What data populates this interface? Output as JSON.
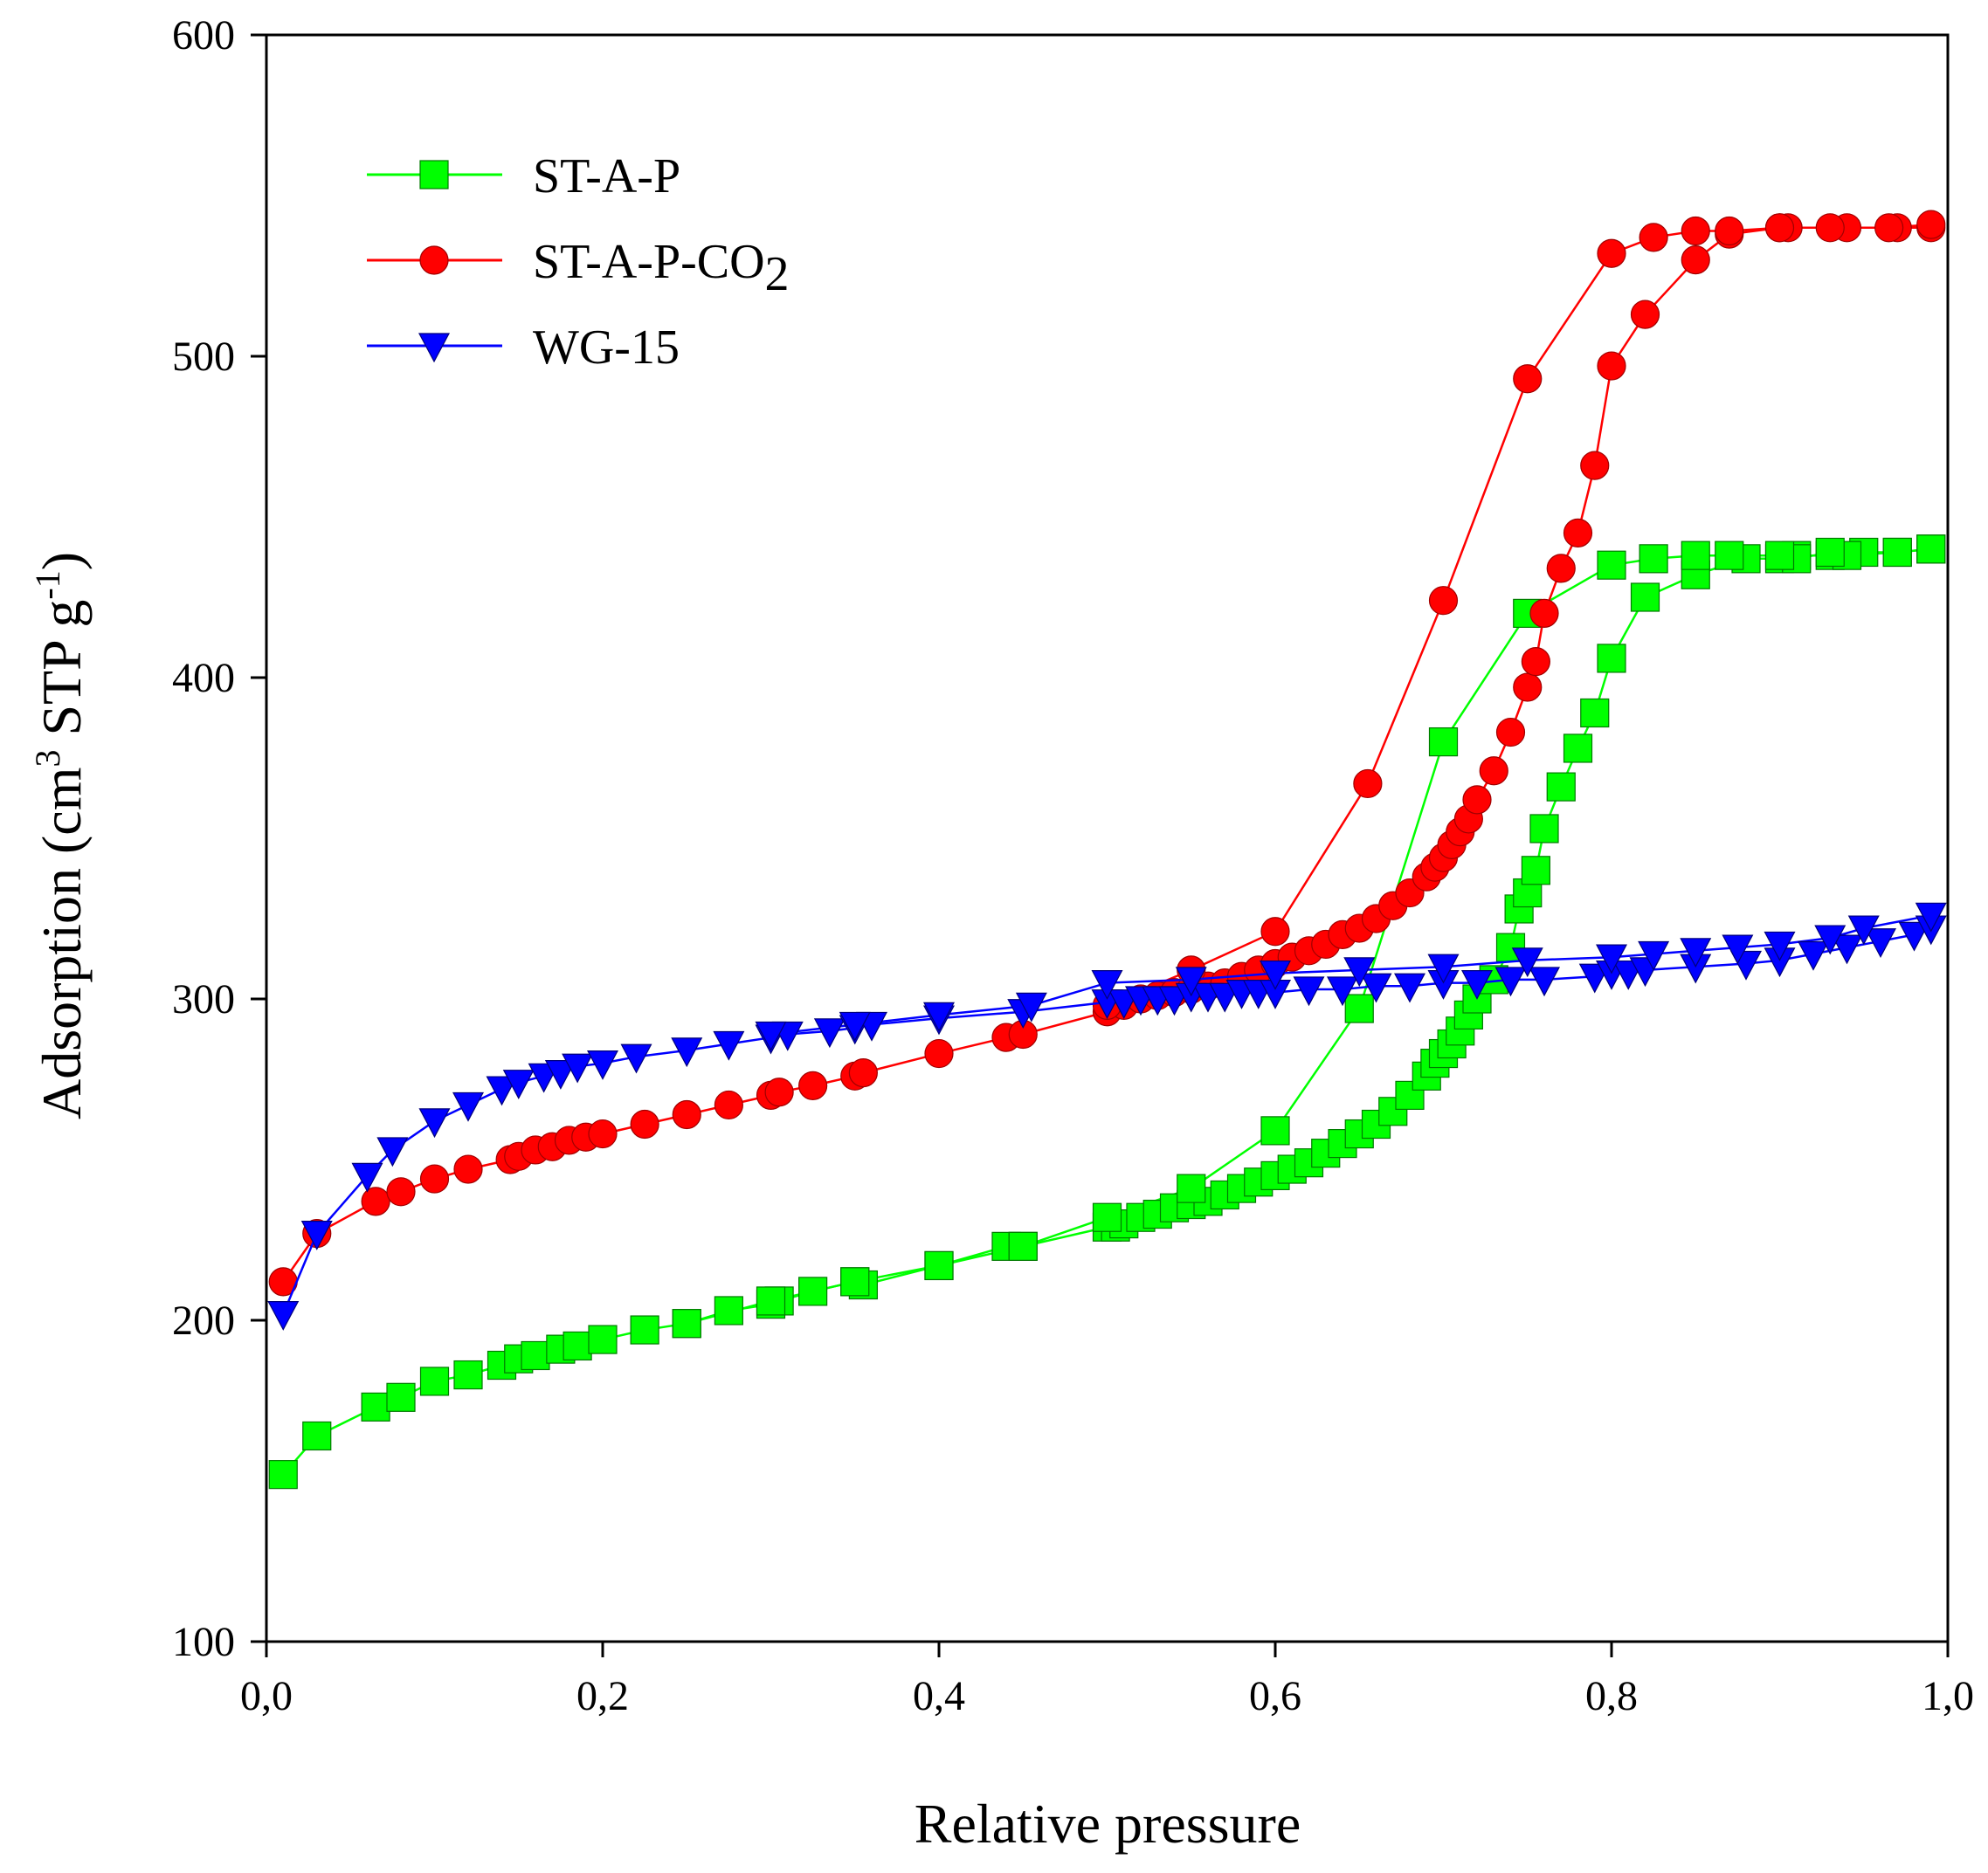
{
  "chart_data": {
    "type": "scatter",
    "title": "",
    "xlabel": "Relative pressure",
    "ylabel": "Adsorption (cm3 STP g-1)",
    "ylabel_parts": {
      "main": "Adsorption (cm",
      "sup1": "3",
      "mid": " STP g",
      "sup2": "-1",
      "end": ")"
    },
    "xlim": [
      0,
      1
    ],
    "ylim": [
      100,
      600
    ],
    "x_ticks": [
      0,
      0.2,
      0.4,
      0.6,
      0.8,
      1.0
    ],
    "x_tick_labels": [
      "0,0",
      "0,2",
      "0,4",
      "0,6",
      "0,8",
      "1,0"
    ],
    "y_ticks": [
      100,
      200,
      300,
      400,
      500,
      600
    ],
    "y_tick_labels": [
      "100",
      "200",
      "300",
      "400",
      "500",
      "600"
    ],
    "grid": false,
    "legend": "top-left",
    "series": [
      {
        "name": "ST-A-P",
        "label_main": "ST-A-P",
        "color": "#00ff00",
        "marker": "square",
        "adsorption": {
          "x": [
            0.01,
            0.03,
            0.065,
            0.08,
            0.1,
            0.12,
            0.14,
            0.15,
            0.16,
            0.175,
            0.185,
            0.2,
            0.225,
            0.25,
            0.275,
            0.3,
            0.305,
            0.325,
            0.35,
            0.355,
            0.4,
            0.44,
            0.45,
            0.5,
            0.505,
            0.51,
            0.52,
            0.53,
            0.54,
            0.55,
            0.56,
            0.57,
            0.58,
            0.59,
            0.6,
            0.61,
            0.62,
            0.63,
            0.64,
            0.65,
            0.66,
            0.67,
            0.68,
            0.69,
            0.695,
            0.7,
            0.705,
            0.71,
            0.715,
            0.72,
            0.73,
            0.74,
            0.745,
            0.75,
            0.755,
            0.76,
            0.77,
            0.78,
            0.79,
            0.8,
            0.82,
            0.85,
            0.88,
            0.9,
            0.91,
            0.93,
            0.95,
            0.97,
            0.99
          ],
          "y": [
            152,
            164,
            173,
            176,
            181,
            183,
            186,
            188,
            189,
            191,
            192,
            194,
            197,
            199,
            203,
            205,
            206,
            209,
            212,
            211,
            217,
            223,
            223,
            229,
            229,
            230,
            232,
            233,
            235,
            236,
            237,
            239,
            241,
            243,
            245,
            247,
            249,
            252,
            255,
            258,
            261,
            265,
            270,
            276,
            280,
            283,
            286,
            290,
            295,
            300,
            306,
            316,
            328,
            333,
            340,
            353,
            366,
            378,
            389,
            406,
            425,
            432,
            437,
            437,
            438,
            438,
            439,
            439,
            440
          ]
        },
        "desorption": {
          "x": [
            0.99,
            0.97,
            0.94,
            0.93,
            0.91,
            0.9,
            0.87,
            0.85,
            0.825,
            0.8,
            0.75,
            0.7,
            0.65,
            0.6,
            0.55,
            0.5,
            0.45,
            0.4,
            0.35,
            0.3,
            0.25
          ],
          "y": [
            440,
            439,
            438,
            439,
            437,
            438,
            438,
            438,
            437,
            435,
            420,
            380,
            297,
            259,
            241,
            232,
            223,
            217,
            212,
            206,
            199
          ]
        }
      },
      {
        "name": "ST-A-P-CO2",
        "label_main": "ST-A-P-CO",
        "label_sub": "2",
        "color": "#ff0000",
        "marker": "circle",
        "adsorption": {
          "x": [
            0.01,
            0.03,
            0.065,
            0.08,
            0.1,
            0.12,
            0.145,
            0.15,
            0.16,
            0.17,
            0.18,
            0.19,
            0.2,
            0.225,
            0.25,
            0.275,
            0.3,
            0.305,
            0.325,
            0.35,
            0.355,
            0.4,
            0.44,
            0.45,
            0.5,
            0.51,
            0.52,
            0.53,
            0.54,
            0.55,
            0.56,
            0.57,
            0.58,
            0.59,
            0.6,
            0.61,
            0.62,
            0.63,
            0.64,
            0.65,
            0.66,
            0.67,
            0.68,
            0.69,
            0.695,
            0.7,
            0.705,
            0.71,
            0.715,
            0.72,
            0.73,
            0.74,
            0.75,
            0.755,
            0.76,
            0.77,
            0.78,
            0.79,
            0.8,
            0.82,
            0.85,
            0.87,
            0.9,
            0.94,
            0.97,
            0.99
          ],
          "y": [
            212,
            227,
            237,
            240,
            244,
            247,
            250,
            251,
            253,
            254,
            256,
            257,
            258,
            261,
            264,
            267,
            270,
            271,
            273,
            276,
            277,
            283,
            288,
            289,
            296,
            298,
            300,
            301,
            302,
            303,
            304,
            305,
            307,
            309,
            311,
            313,
            315,
            317,
            320,
            322,
            325,
            329,
            333,
            338,
            341,
            344,
            348,
            352,
            356,
            362,
            371,
            383,
            397,
            405,
            420,
            434,
            445,
            466,
            497,
            513,
            530,
            538,
            540,
            540,
            540,
            540
          ]
        },
        "desorption": {
          "x": [
            0.99,
            0.965,
            0.93,
            0.905,
            0.9,
            0.87,
            0.85,
            0.825,
            0.8,
            0.75,
            0.7,
            0.655,
            0.6,
            0.55,
            0.5
          ],
          "y": [
            541,
            540,
            540,
            540,
            540,
            539,
            539,
            537,
            532,
            493,
            424,
            367,
            321,
            309,
            298
          ]
        }
      },
      {
        "name": "WG-15",
        "label_main": "WG-15",
        "color": "#0000ff",
        "marker": "triangle-down",
        "adsorption": {
          "x": [
            0.01,
            0.03,
            0.06,
            0.075,
            0.1,
            0.12,
            0.14,
            0.15,
            0.165,
            0.175,
            0.185,
            0.2,
            0.22,
            0.25,
            0.275,
            0.3,
            0.31,
            0.335,
            0.35,
            0.36,
            0.4,
            0.45,
            0.5,
            0.51,
            0.52,
            0.53,
            0.54,
            0.55,
            0.56,
            0.57,
            0.58,
            0.59,
            0.6,
            0.62,
            0.64,
            0.66,
            0.68,
            0.7,
            0.72,
            0.74,
            0.76,
            0.79,
            0.8,
            0.81,
            0.82,
            0.85,
            0.88,
            0.9,
            0.92,
            0.94,
            0.96,
            0.98,
            0.99
          ],
          "y": [
            202,
            227,
            245,
            253,
            262,
            267,
            272,
            274,
            276,
            277,
            279,
            280,
            282,
            284,
            286,
            288,
            289,
            290,
            291,
            292,
            294,
            296,
            299,
            299,
            300,
            300,
            300,
            301,
            301,
            301,
            302,
            302,
            302,
            303,
            303,
            304,
            304,
            305,
            305,
            306,
            306,
            307,
            308,
            308,
            309,
            310,
            311,
            312,
            314,
            316,
            318,
            320,
            322
          ]
        },
        "desorption": {
          "x": [
            0.99,
            0.95,
            0.93,
            0.9,
            0.875,
            0.85,
            0.825,
            0.8,
            0.75,
            0.7,
            0.65,
            0.6,
            0.55,
            0.5,
            0.455,
            0.4,
            0.35,
            0.3
          ],
          "y": [
            326,
            322,
            319,
            317,
            316,
            315,
            314,
            313,
            312,
            310,
            309,
            308,
            306,
            305,
            298,
            295,
            292,
            289
          ]
        }
      }
    ]
  }
}
